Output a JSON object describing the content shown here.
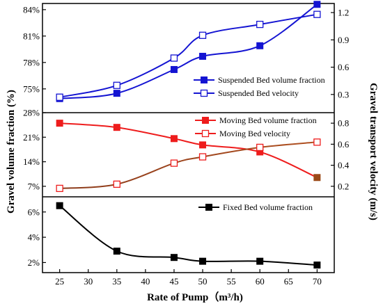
{
  "chart_data": {
    "type": "line",
    "x": [
      25,
      35,
      45,
      50,
      60,
      70
    ],
    "xlabel": "Rate of Pump（m³/h)",
    "xlim": [
      22,
      73
    ],
    "xticks": [
      25,
      30,
      35,
      40,
      45,
      50,
      55,
      60,
      65,
      70
    ],
    "ylabel_left": "Gravel volume fraction (%)",
    "ylabel_right": "Gravel transport velocity (m/s)",
    "panels": [
      {
        "id": "top",
        "left_ticks": [
          "84%",
          "81%",
          "78%",
          "75%"
        ],
        "left_tick_values": [
          84,
          81,
          78,
          75
        ],
        "left_ylim": [
          72.3,
          84.7
        ],
        "right_ticks": [
          "1.2",
          "0.9",
          "0.6",
          "0.3"
        ],
        "right_tick_values": [
          1.2,
          0.9,
          0.6,
          0.3
        ],
        "right_ylim": [
          0.1,
          1.3
        ],
        "series": [
          {
            "name": "Suspended Bed volume fraction",
            "axis": "left",
            "marker": "filled-square",
            "color": "#1414d2",
            "values": [
              73.9,
              74.5,
              77.2,
              78.7,
              79.9,
              84.6
            ]
          },
          {
            "name": "Suspended Bed velocity",
            "axis": "right",
            "marker": "open-square",
            "color": "#1414d2",
            "values": [
              0.27,
              0.4,
              0.7,
              0.95,
              1.07,
              1.18
            ]
          }
        ],
        "legend_position": "center-right"
      },
      {
        "id": "middle",
        "left_ticks": [
          "28%",
          "21%",
          "14%",
          "7%"
        ],
        "left_tick_values": [
          28,
          21,
          14,
          7
        ],
        "left_ylim": [
          4,
          28
        ],
        "right_ticks": [
          "0.8",
          "0.6",
          "0.4",
          "0.2"
        ],
        "right_tick_values": [
          0.8,
          0.6,
          0.4,
          0.2
        ],
        "right_ylim": [
          0.1,
          0.9
        ],
        "series": [
          {
            "name": "Moving Bed volume fraction",
            "axis": "left",
            "marker": "filled-square",
            "color": "#ee1c1c",
            "values": [
              25.0,
              23.8,
              20.6,
              18.8,
              16.8,
              9.5
            ]
          },
          {
            "name": "Moving Bed velocity",
            "axis": "right",
            "marker": "open-square",
            "color": "#ee1c1c",
            "values": [
              0.18,
              0.22,
              0.42,
              0.48,
              0.57,
              0.62
            ]
          }
        ],
        "legend_position": "top-right"
      },
      {
        "id": "bottom",
        "left_ticks": [
          "6%",
          "4%",
          "2%"
        ],
        "left_tick_values": [
          6,
          4,
          2
        ],
        "left_ylim": [
          1.2,
          7.2
        ],
        "series": [
          {
            "name": "Fixed Bed volume fraction",
            "axis": "left",
            "marker": "filled-square",
            "color": "#000000",
            "values": [
              6.5,
              2.9,
              2.4,
              2.1,
              2.1,
              1.8
            ]
          }
        ],
        "legend_position": "top-right"
      }
    ]
  }
}
